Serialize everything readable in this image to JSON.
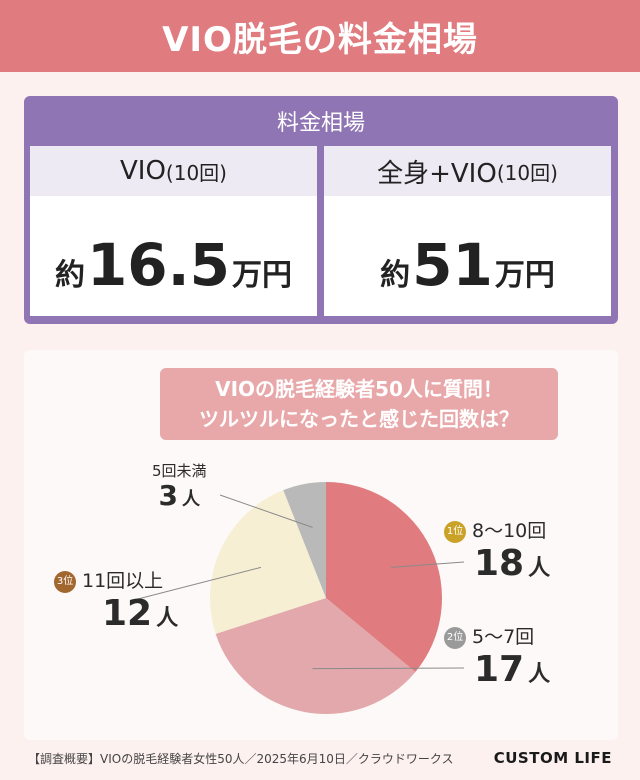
{
  "header": {
    "title": "VIO脱毛の料金相場"
  },
  "prices": {
    "title": "料金相場",
    "cards": [
      {
        "label": "VIO",
        "sub": "(10回)",
        "prefix": "約",
        "value": "16.5",
        "suffix": "万円"
      },
      {
        "label": "全身+VIO",
        "sub": "(10回)",
        "prefix": "約",
        "value": "51",
        "suffix": "万円"
      }
    ]
  },
  "survey": {
    "question_line1": "VIOの脱毛経験者50人に質問！",
    "question_line2": "ツルツルになったと感じた回数は？"
  },
  "chart_data": {
    "type": "pie",
    "title": "",
    "slices": [
      {
        "label": "8〜10回",
        "value": 18,
        "unit": "人",
        "rank": "1",
        "rank_suffix": "位",
        "color": "#e07c7f"
      },
      {
        "label": "5〜7回",
        "value": 17,
        "unit": "人",
        "rank": "2",
        "rank_suffix": "位",
        "color": "#e2a8ab"
      },
      {
        "label": "11回以上",
        "value": 12,
        "unit": "人",
        "rank": "3",
        "rank_suffix": "位",
        "color": "#f7efd3"
      },
      {
        "label": "5回未満",
        "value": 3,
        "unit": "人",
        "rank": "",
        "rank_suffix": "",
        "color": "#b9b9b9"
      }
    ],
    "medal_colors": [
      "#c9a227",
      "#9a9a9a",
      "#a2662f"
    ]
  },
  "footer": {
    "note": "【調査概要】VIOの脱毛経験者女性50人／2025年6月10日／クラウドワークス",
    "brand": "CUSTOM LIFE"
  }
}
